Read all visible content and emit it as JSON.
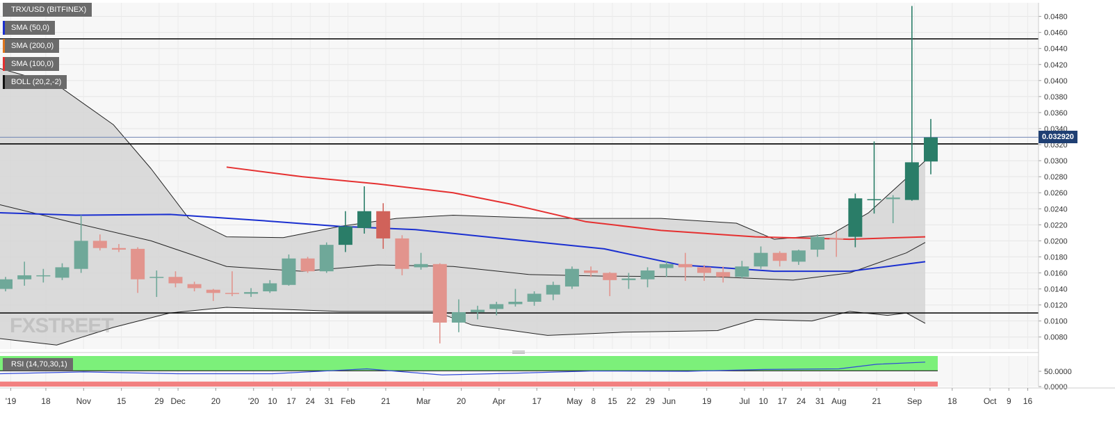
{
  "chart_data": {
    "type": "candlestick",
    "symbol": "TRX/USD (BITFINEX)",
    "indicators": [
      {
        "label": "SMA (50,0)",
        "color": "#1a2fd0"
      },
      {
        "label": "SMA (200,0)",
        "color": "#e0761d"
      },
      {
        "label": "SMA (100,0)",
        "color": "#e53030"
      },
      {
        "label": "BOLL (20,2,-2)",
        "color": "#111111"
      }
    ],
    "last_price": "0.032920",
    "y_ticks": [
      "0.0080",
      "0.0100",
      "0.0120",
      "0.0140",
      "0.0160",
      "0.0180",
      "0.0200",
      "0.0220",
      "0.0240",
      "0.0260",
      "0.0280",
      "0.0300",
      "0.0320",
      "0.0340",
      "0.0360",
      "0.0380",
      "0.0400",
      "0.0420",
      "0.0440",
      "0.0460",
      "0.0480"
    ],
    "ylim": [
      0.0065,
      0.0497
    ],
    "x_date_range": [
      "2019-10-01",
      "2020-10-20"
    ],
    "x_ticks": [
      {
        "label": "'19",
        "date": "2019-10-05"
      },
      {
        "label": "18",
        "date": "2019-10-18"
      },
      {
        "label": "Nov",
        "date": "2019-11-01"
      },
      {
        "label": "15",
        "date": "2019-11-15"
      },
      {
        "label": "29",
        "date": "2019-11-29"
      },
      {
        "label": "Dec",
        "date": "2019-12-06"
      },
      {
        "label": "20",
        "date": "2019-12-20"
      },
      {
        "label": "'20",
        "date": "2020-01-03"
      },
      {
        "label": "10",
        "date": "2020-01-10"
      },
      {
        "label": "17",
        "date": "2020-01-17"
      },
      {
        "label": "24",
        "date": "2020-01-24"
      },
      {
        "label": "31",
        "date": "2020-01-31"
      },
      {
        "label": "Feb",
        "date": "2020-02-07"
      },
      {
        "label": "21",
        "date": "2020-02-21"
      },
      {
        "label": "Mar",
        "date": "2020-03-06"
      },
      {
        "label": "20",
        "date": "2020-03-20"
      },
      {
        "label": "Apr",
        "date": "2020-04-03"
      },
      {
        "label": "17",
        "date": "2020-04-17"
      },
      {
        "label": "May",
        "date": "2020-05-01"
      },
      {
        "label": "8",
        "date": "2020-05-08"
      },
      {
        "label": "15",
        "date": "2020-05-15"
      },
      {
        "label": "22",
        "date": "2020-05-22"
      },
      {
        "label": "29",
        "date": "2020-05-29"
      },
      {
        "label": "Jun",
        "date": "2020-06-05"
      },
      {
        "label": "19",
        "date": "2020-06-19"
      },
      {
        "label": "Jul",
        "date": "2020-07-03"
      },
      {
        "label": "10",
        "date": "2020-07-10"
      },
      {
        "label": "17",
        "date": "2020-07-17"
      },
      {
        "label": "24",
        "date": "2020-07-24"
      },
      {
        "label": "31",
        "date": "2020-07-31"
      },
      {
        "label": "Aug",
        "date": "2020-08-07"
      },
      {
        "label": "21",
        "date": "2020-08-21"
      },
      {
        "label": "Sep",
        "date": "2020-09-04"
      },
      {
        "label": "18",
        "date": "2020-09-18"
      },
      {
        "label": "Oct",
        "date": "2020-10-02"
      },
      {
        "label": "9",
        "date": "2020-10-09"
      },
      {
        "label": "16",
        "date": "2020-10-16"
      }
    ],
    "candles": [
      {
        "date": "2019-10-01",
        "o": 0.014,
        "h": 0.0155,
        "l": 0.0137,
        "c": 0.0152
      },
      {
        "date": "2019-10-08",
        "o": 0.0152,
        "h": 0.0174,
        "l": 0.0144,
        "c": 0.0157
      },
      {
        "date": "2019-10-15",
        "o": 0.0157,
        "h": 0.0165,
        "l": 0.0148,
        "c": 0.0157
      },
      {
        "date": "2019-10-22",
        "o": 0.0154,
        "h": 0.0172,
        "l": 0.0151,
        "c": 0.0167
      },
      {
        "date": "2019-10-29",
        "o": 0.0165,
        "h": 0.0232,
        "l": 0.016,
        "c": 0.02
      },
      {
        "date": "2019-11-05",
        "o": 0.02,
        "h": 0.0208,
        "l": 0.0188,
        "c": 0.0191
      },
      {
        "date": "2019-11-12",
        "o": 0.0191,
        "h": 0.0196,
        "l": 0.0186,
        "c": 0.0189
      },
      {
        "date": "2019-11-19",
        "o": 0.019,
        "h": 0.0192,
        "l": 0.0135,
        "c": 0.0152
      },
      {
        "date": "2019-11-26",
        "o": 0.0154,
        "h": 0.0163,
        "l": 0.013,
        "c": 0.0155
      },
      {
        "date": "2019-12-03",
        "o": 0.0155,
        "h": 0.0162,
        "l": 0.0142,
        "c": 0.0147
      },
      {
        "date": "2019-12-10",
        "o": 0.0146,
        "h": 0.0149,
        "l": 0.0137,
        "c": 0.0141
      },
      {
        "date": "2019-12-17",
        "o": 0.0139,
        "h": 0.014,
        "l": 0.0125,
        "c": 0.0135
      },
      {
        "date": "2019-12-24",
        "o": 0.0135,
        "h": 0.0162,
        "l": 0.0131,
        "c": 0.0134
      },
      {
        "date": "2019-12-31",
        "o": 0.0134,
        "h": 0.0141,
        "l": 0.013,
        "c": 0.0136
      },
      {
        "date": "2020-01-07",
        "o": 0.0137,
        "h": 0.0151,
        "l": 0.0135,
        "c": 0.0147
      },
      {
        "date": "2020-01-14",
        "o": 0.0145,
        "h": 0.0183,
        "l": 0.0144,
        "c": 0.0178
      },
      {
        "date": "2020-01-21",
        "o": 0.0178,
        "h": 0.018,
        "l": 0.016,
        "c": 0.0162
      },
      {
        "date": "2020-01-28",
        "o": 0.0162,
        "h": 0.0198,
        "l": 0.016,
        "c": 0.0195
      },
      {
        "date": "2020-02-04",
        "o": 0.0195,
        "h": 0.0237,
        "l": 0.0186,
        "c": 0.0218
      },
      {
        "date": "2020-02-11",
        "o": 0.0216,
        "h": 0.0268,
        "l": 0.0209,
        "c": 0.0237
      },
      {
        "date": "2020-02-18",
        "o": 0.0237,
        "h": 0.0247,
        "l": 0.019,
        "c": 0.0203
      },
      {
        "date": "2020-02-25",
        "o": 0.0203,
        "h": 0.0207,
        "l": 0.0157,
        "c": 0.0165
      },
      {
        "date": "2020-03-03",
        "o": 0.0167,
        "h": 0.0185,
        "l": 0.0164,
        "c": 0.0171
      },
      {
        "date": "2020-03-10",
        "o": 0.0171,
        "h": 0.0172,
        "l": 0.0072,
        "c": 0.0098
      },
      {
        "date": "2020-03-17",
        "o": 0.0098,
        "h": 0.0127,
        "l": 0.0086,
        "c": 0.0111
      },
      {
        "date": "2020-03-24",
        "o": 0.0111,
        "h": 0.0119,
        "l": 0.0102,
        "c": 0.0114
      },
      {
        "date": "2020-03-31",
        "o": 0.0115,
        "h": 0.0124,
        "l": 0.0107,
        "c": 0.0121
      },
      {
        "date": "2020-04-07",
        "o": 0.0121,
        "h": 0.014,
        "l": 0.0118,
        "c": 0.0124
      },
      {
        "date": "2020-04-14",
        "o": 0.0124,
        "h": 0.0137,
        "l": 0.0119,
        "c": 0.0134
      },
      {
        "date": "2020-04-21",
        "o": 0.0133,
        "h": 0.0149,
        "l": 0.0126,
        "c": 0.0145
      },
      {
        "date": "2020-04-28",
        "o": 0.0143,
        "h": 0.0168,
        "l": 0.014,
        "c": 0.0165
      },
      {
        "date": "2020-05-05",
        "o": 0.0163,
        "h": 0.0168,
        "l": 0.0155,
        "c": 0.016
      },
      {
        "date": "2020-05-12",
        "o": 0.016,
        "h": 0.0161,
        "l": 0.0131,
        "c": 0.0151
      },
      {
        "date": "2020-05-19",
        "o": 0.0151,
        "h": 0.016,
        "l": 0.014,
        "c": 0.0153
      },
      {
        "date": "2020-05-26",
        "o": 0.0152,
        "h": 0.0167,
        "l": 0.0142,
        "c": 0.0163
      },
      {
        "date": "2020-06-02",
        "o": 0.0166,
        "h": 0.0175,
        "l": 0.0155,
        "c": 0.0171
      },
      {
        "date": "2020-06-09",
        "o": 0.0171,
        "h": 0.0185,
        "l": 0.015,
        "c": 0.0167
      },
      {
        "date": "2020-06-16",
        "o": 0.0167,
        "h": 0.017,
        "l": 0.015,
        "c": 0.016
      },
      {
        "date": "2020-06-23",
        "o": 0.0161,
        "h": 0.0168,
        "l": 0.0148,
        "c": 0.0155
      },
      {
        "date": "2020-06-30",
        "o": 0.0155,
        "h": 0.0175,
        "l": 0.0153,
        "c": 0.0168
      },
      {
        "date": "2020-07-07",
        "o": 0.0168,
        "h": 0.0193,
        "l": 0.0165,
        "c": 0.0185
      },
      {
        "date": "2020-07-14",
        "o": 0.0185,
        "h": 0.0187,
        "l": 0.0168,
        "c": 0.0175
      },
      {
        "date": "2020-07-21",
        "o": 0.0174,
        "h": 0.0189,
        "l": 0.017,
        "c": 0.0188
      },
      {
        "date": "2020-07-28",
        "o": 0.0189,
        "h": 0.0208,
        "l": 0.018,
        "c": 0.0205
      },
      {
        "date": "2020-08-04",
        "o": 0.0203,
        "h": 0.0212,
        "l": 0.018,
        "c": 0.0202
      },
      {
        "date": "2020-08-11",
        "o": 0.0205,
        "h": 0.0259,
        "l": 0.0192,
        "c": 0.0253
      },
      {
        "date": "2020-08-18",
        "o": 0.0252,
        "h": 0.0324,
        "l": 0.0234,
        "c": 0.0252
      },
      {
        "date": "2020-08-25",
        "o": 0.0252,
        "h": 0.0257,
        "l": 0.0222,
        "c": 0.0254
      },
      {
        "date": "2020-09-01",
        "o": 0.0251,
        "h": 0.0493,
        "l": 0.025,
        "c": 0.0298
      },
      {
        "date": "2020-09-08",
        "o": 0.0299,
        "h": 0.0352,
        "l": 0.0283,
        "c": 0.0329
      }
    ],
    "sma_50": [
      {
        "date": "2019-10-01",
        "v": 0.0235
      },
      {
        "date": "2019-10-29",
        "v": 0.0232
      },
      {
        "date": "2019-12-03",
        "v": 0.0233
      },
      {
        "date": "2020-01-07",
        "v": 0.0225
      },
      {
        "date": "2020-02-04",
        "v": 0.0218
      },
      {
        "date": "2020-03-03",
        "v": 0.0214
      },
      {
        "date": "2020-04-07",
        "v": 0.0202
      },
      {
        "date": "2020-05-12",
        "v": 0.019
      },
      {
        "date": "2020-06-09",
        "v": 0.017
      },
      {
        "date": "2020-07-14",
        "v": 0.0162
      },
      {
        "date": "2020-08-11",
        "v": 0.0162
      },
      {
        "date": "2020-09-08",
        "v": 0.0174
      }
    ],
    "sma_100": [
      {
        "date": "2019-12-24",
        "v": 0.0292
      },
      {
        "date": "2020-01-21",
        "v": 0.028
      },
      {
        "date": "2020-02-18",
        "v": 0.0271
      },
      {
        "date": "2020-03-17",
        "v": 0.026
      },
      {
        "date": "2020-04-07",
        "v": 0.0246
      },
      {
        "date": "2020-05-05",
        "v": 0.0224
      },
      {
        "date": "2020-06-02",
        "v": 0.0213
      },
      {
        "date": "2020-07-07",
        "v": 0.0205
      },
      {
        "date": "2020-08-11",
        "v": 0.0202
      },
      {
        "date": "2020-09-08",
        "v": 0.0205
      }
    ],
    "boll_upper": [
      {
        "date": "2019-10-01",
        "v": 0.0415
      },
      {
        "date": "2019-10-22",
        "v": 0.0395
      },
      {
        "date": "2019-11-12",
        "v": 0.0345
      },
      {
        "date": "2019-11-26",
        "v": 0.029
      },
      {
        "date": "2019-12-10",
        "v": 0.0228
      },
      {
        "date": "2019-12-24",
        "v": 0.0205
      },
      {
        "date": "2020-01-14",
        "v": 0.0204
      },
      {
        "date": "2020-02-04",
        "v": 0.0218
      },
      {
        "date": "2020-02-25",
        "v": 0.0228
      },
      {
        "date": "2020-03-17",
        "v": 0.0232
      },
      {
        "date": "2020-04-21",
        "v": 0.0228
      },
      {
        "date": "2020-06-02",
        "v": 0.0228
      },
      {
        "date": "2020-06-30",
        "v": 0.0222
      },
      {
        "date": "2020-07-14",
        "v": 0.0202
      },
      {
        "date": "2020-08-04",
        "v": 0.0208
      },
      {
        "date": "2020-08-18",
        "v": 0.0235
      },
      {
        "date": "2020-09-01",
        "v": 0.0278
      },
      {
        "date": "2020-09-08",
        "v": 0.03
      }
    ],
    "boll_middle": [
      {
        "date": "2019-10-01",
        "v": 0.0245
      },
      {
        "date": "2019-10-29",
        "v": 0.0222
      },
      {
        "date": "2019-11-26",
        "v": 0.02
      },
      {
        "date": "2019-12-24",
        "v": 0.0168
      },
      {
        "date": "2020-01-21",
        "v": 0.0162
      },
      {
        "date": "2020-02-18",
        "v": 0.017
      },
      {
        "date": "2020-03-17",
        "v": 0.0168
      },
      {
        "date": "2020-04-14",
        "v": 0.0158
      },
      {
        "date": "2020-05-12",
        "v": 0.0156
      },
      {
        "date": "2020-06-23",
        "v": 0.0155
      },
      {
        "date": "2020-07-21",
        "v": 0.0151
      },
      {
        "date": "2020-08-11",
        "v": 0.016
      },
      {
        "date": "2020-09-01",
        "v": 0.0185
      },
      {
        "date": "2020-09-08",
        "v": 0.0198
      }
    ],
    "boll_lower": [
      {
        "date": "2019-10-01",
        "v": 0.0078
      },
      {
        "date": "2019-10-22",
        "v": 0.007
      },
      {
        "date": "2019-11-12",
        "v": 0.0092
      },
      {
        "date": "2019-12-03",
        "v": 0.011
      },
      {
        "date": "2019-12-24",
        "v": 0.0117
      },
      {
        "date": "2020-02-04",
        "v": 0.0112
      },
      {
        "date": "2020-03-10",
        "v": 0.0112
      },
      {
        "date": "2020-03-24",
        "v": 0.0095
      },
      {
        "date": "2020-04-21",
        "v": 0.0082
      },
      {
        "date": "2020-05-19",
        "v": 0.0086
      },
      {
        "date": "2020-06-23",
        "v": 0.0088
      },
      {
        "date": "2020-07-07",
        "v": 0.0102
      },
      {
        "date": "2020-07-28",
        "v": 0.01
      },
      {
        "date": "2020-08-11",
        "v": 0.0112
      },
      {
        "date": "2020-08-25",
        "v": 0.0107
      },
      {
        "date": "2020-09-01",
        "v": 0.011
      },
      {
        "date": "2020-09-08",
        "v": 0.0097
      }
    ],
    "horizontal_levels": [
      0.0452,
      0.0321,
      0.011
    ],
    "rsi": {
      "label": "RSI (14,70,30,1)",
      "y_ticks": [
        "0.0000",
        "50.0000"
      ],
      "overbought": 70,
      "oversold": 30,
      "values": [
        {
          "date": "2019-10-01",
          "v": 42
        },
        {
          "date": "2019-11-01",
          "v": 48
        },
        {
          "date": "2019-12-06",
          "v": 42
        },
        {
          "date": "2020-01-10",
          "v": 42
        },
        {
          "date": "2020-02-14",
          "v": 58
        },
        {
          "date": "2020-03-13",
          "v": 38
        },
        {
          "date": "2020-04-10",
          "v": 44
        },
        {
          "date": "2020-05-08",
          "v": 51
        },
        {
          "date": "2020-06-12",
          "v": 50
        },
        {
          "date": "2020-07-10",
          "v": 56
        },
        {
          "date": "2020-08-07",
          "v": 58
        },
        {
          "date": "2020-08-21",
          "v": 73
        },
        {
          "date": "2020-09-08",
          "v": 80
        }
      ]
    },
    "watermark": "FXSTREET"
  }
}
